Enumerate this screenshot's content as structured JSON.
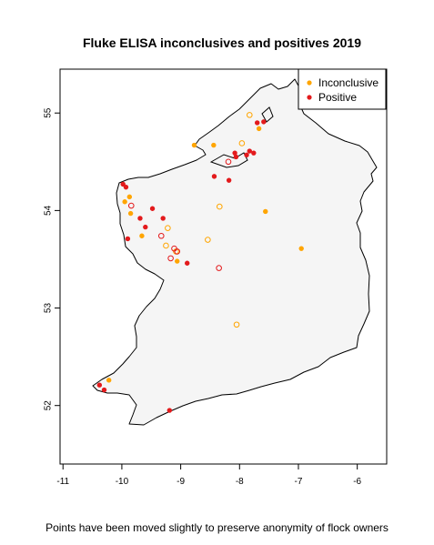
{
  "colors": {
    "inconclusive": "#FFA500",
    "positive": "#E31A1C",
    "land": "#F5F5F5",
    "coast": "#000000"
  },
  "chart_data": {
    "type": "map-scatter",
    "title": "Fluke ELISA inconclusives and positives 2019",
    "caption": "Points have been moved slightly to preserve anonymity of flock owners",
    "xlim": [
      -11.05,
      -5.5
    ],
    "ylim": [
      51.4,
      55.45
    ],
    "xticks": [
      -11,
      -10,
      -9,
      -8,
      -7,
      -6
    ],
    "yticks": [
      52,
      53,
      54,
      55
    ],
    "legend": {
      "position": "top-right",
      "entries": [
        {
          "label": "Inconclusive",
          "series": "inconclusive"
        },
        {
          "label": "Positive",
          "series": "positive"
        }
      ]
    },
    "series": [
      {
        "name": "Inconclusive",
        "key": "inconclusive",
        "points": [
          {
            "lon": -7.83,
            "lat": 54.98,
            "style": "hollow"
          },
          {
            "lon": -7.67,
            "lat": 54.84,
            "style": "filled"
          },
          {
            "lon": -7.96,
            "lat": 54.69,
            "style": "hollow"
          },
          {
            "lon": -8.77,
            "lat": 54.67,
            "style": "filled"
          },
          {
            "lon": -8.44,
            "lat": 54.67,
            "style": "filled"
          },
          {
            "lon": -9.87,
            "lat": 54.14,
            "style": "filled"
          },
          {
            "lon": -9.95,
            "lat": 54.09,
            "style": "filled"
          },
          {
            "lon": -9.85,
            "lat": 53.97,
            "style": "filled"
          },
          {
            "lon": -8.34,
            "lat": 54.04,
            "style": "hollow"
          },
          {
            "lon": -7.56,
            "lat": 53.99,
            "style": "filled"
          },
          {
            "lon": -9.22,
            "lat": 53.82,
            "style": "hollow"
          },
          {
            "lon": -9.66,
            "lat": 53.74,
            "style": "filled"
          },
          {
            "lon": -9.25,
            "lat": 53.64,
            "style": "hollow"
          },
          {
            "lon": -8.54,
            "lat": 53.7,
            "style": "hollow"
          },
          {
            "lon": -9.08,
            "lat": 53.58,
            "style": "hollow"
          },
          {
            "lon": -9.06,
            "lat": 53.48,
            "style": "filled"
          },
          {
            "lon": -6.95,
            "lat": 53.61,
            "style": "filled"
          },
          {
            "lon": -8.05,
            "lat": 52.83,
            "style": "hollow"
          },
          {
            "lon": -10.22,
            "lat": 52.26,
            "style": "filled"
          }
        ]
      },
      {
        "name": "Positive",
        "key": "positive",
        "points": [
          {
            "lon": -7.7,
            "lat": 54.9,
            "style": "filled"
          },
          {
            "lon": -7.59,
            "lat": 54.91,
            "style": "filled"
          },
          {
            "lon": -7.83,
            "lat": 54.61,
            "style": "filled"
          },
          {
            "lon": -7.76,
            "lat": 54.59,
            "style": "filled"
          },
          {
            "lon": -7.88,
            "lat": 54.57,
            "style": "filled"
          },
          {
            "lon": -8.08,
            "lat": 54.59,
            "style": "filled"
          },
          {
            "lon": -8.06,
            "lat": 54.55,
            "style": "filled"
          },
          {
            "lon": -8.19,
            "lat": 54.5,
            "style": "hollow"
          },
          {
            "lon": -8.43,
            "lat": 54.35,
            "style": "filled"
          },
          {
            "lon": -8.18,
            "lat": 54.31,
            "style": "filled"
          },
          {
            "lon": -9.98,
            "lat": 54.27,
            "style": "filled"
          },
          {
            "lon": -9.93,
            "lat": 54.24,
            "style": "filled"
          },
          {
            "lon": -9.84,
            "lat": 54.05,
            "style": "hollow"
          },
          {
            "lon": -9.48,
            "lat": 54.02,
            "style": "filled"
          },
          {
            "lon": -9.69,
            "lat": 53.92,
            "style": "filled"
          },
          {
            "lon": -9.3,
            "lat": 53.92,
            "style": "filled"
          },
          {
            "lon": -9.6,
            "lat": 53.83,
            "style": "filled"
          },
          {
            "lon": -9.9,
            "lat": 53.71,
            "style": "filled"
          },
          {
            "lon": -9.33,
            "lat": 53.74,
            "style": "hollow"
          },
          {
            "lon": -9.11,
            "lat": 53.61,
            "style": "hollow"
          },
          {
            "lon": -9.06,
            "lat": 53.58,
            "style": "hollow"
          },
          {
            "lon": -9.17,
            "lat": 53.51,
            "style": "hollow"
          },
          {
            "lon": -8.89,
            "lat": 53.46,
            "style": "filled"
          },
          {
            "lon": -8.35,
            "lat": 53.41,
            "style": "hollow"
          },
          {
            "lon": -10.38,
            "lat": 52.21,
            "style": "filled"
          },
          {
            "lon": -10.3,
            "lat": 52.16,
            "style": "filled"
          },
          {
            "lon": -9.19,
            "lat": 51.95,
            "style": "filled"
          }
        ]
      }
    ]
  }
}
